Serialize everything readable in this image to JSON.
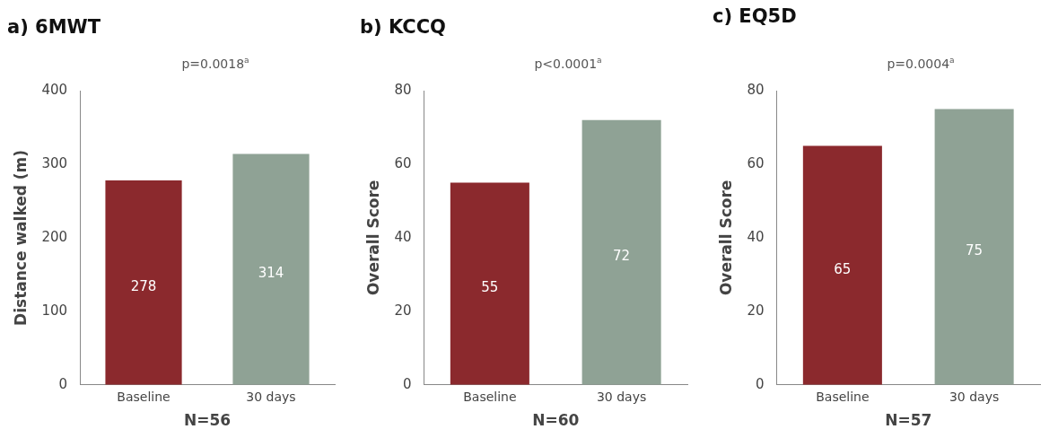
{
  "chart_data": [
    {
      "type": "bar",
      "title": "a) 6MWT",
      "subtitle": "p=0.0018$^{a}$",
      "ylabel": "Distance walked (m)",
      "xlabel": "N=56",
      "categories": [
        "Baseline",
        "30 days"
      ],
      "values": [
        278,
        314
      ],
      "colors": [
        "#8b292d",
        "#8fa295"
      ],
      "ylim": [
        0,
        400
      ],
      "yticks": [
        0,
        100,
        200,
        300,
        400
      ],
      "data_labels": true
    },
    {
      "type": "bar",
      "title": "b) KCCQ",
      "subtitle": "p<0.0001$^{a}$",
      "ylabel": "Overall Score",
      "xlabel": "N=60",
      "categories": [
        "Baseline",
        "30 days"
      ],
      "values": [
        55,
        72
      ],
      "colors": [
        "#8b292d",
        "#8fa295"
      ],
      "ylim": [
        0,
        80
      ],
      "yticks": [
        0,
        20,
        40,
        60,
        80
      ],
      "data_labels": true
    },
    {
      "type": "bar",
      "title": "c) EQ5D",
      "subtitle": "p=0.0004$^{a}$",
      "ylabel": "Overall Score",
      "xlabel": "N=57",
      "categories": [
        "Baseline",
        "30 days"
      ],
      "values": [
        65,
        75
      ],
      "colors": [
        "#8b292d",
        "#8fa295"
      ],
      "ylim": [
        0,
        80
      ],
      "yticks": [
        0,
        20,
        40,
        60,
        80
      ],
      "data_labels": true
    }
  ]
}
